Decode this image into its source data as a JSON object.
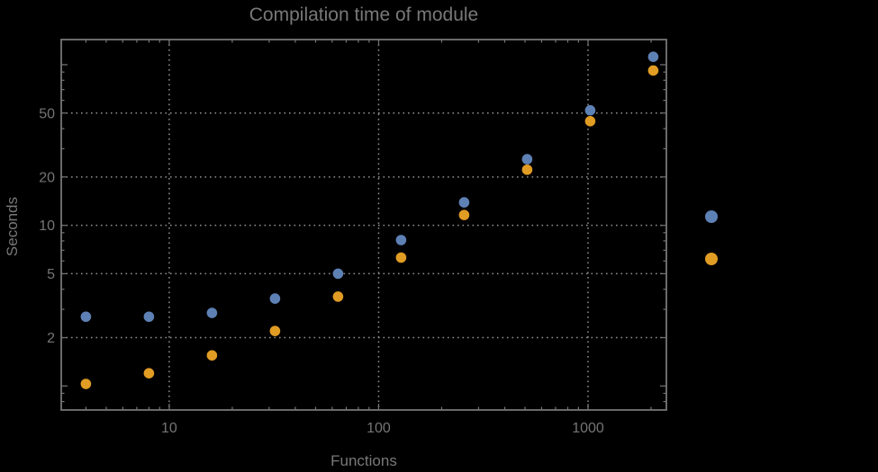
{
  "colors": {
    "background": "#000000",
    "frame": "#767676",
    "text": "#757575",
    "grid": "#8f8f8f",
    "series1": "#5e81b5",
    "series2": "#e19c24"
  },
  "chart_data": {
    "type": "scatter",
    "title": "Compilation time of module",
    "xlabel": "Functions",
    "ylabel": "Seconds",
    "x_scale": "log",
    "y_scale": "log",
    "xlim": [
      3.05,
      2366
    ],
    "ylim": [
      0.709,
      143.4
    ],
    "grid": "dotted",
    "x": [
      4,
      8,
      16,
      32,
      64,
      128,
      256,
      512,
      1024,
      2048
    ],
    "series": [
      {
        "name": "series-1-blue",
        "color": "#5e81b5",
        "values": [
          2.7,
          2.7,
          2.85,
          3.5,
          5.0,
          8.1,
          13.9,
          25.8,
          52,
          112
        ]
      },
      {
        "name": "series-2-orange",
        "color": "#e19c24",
        "values": [
          1.03,
          1.2,
          1.55,
          2.2,
          3.6,
          6.3,
          11.6,
          22.2,
          44.5,
          92
        ]
      }
    ],
    "x_major_ticks": [
      10,
      100,
      1000
    ],
    "x_major_tick_labels": [
      "10",
      "100",
      "1000"
    ],
    "x_minor_ticks": [
      4,
      5,
      6,
      7,
      8,
      9,
      20,
      30,
      40,
      50,
      60,
      70,
      80,
      90,
      200,
      300,
      400,
      500,
      600,
      700,
      800,
      900,
      2000
    ],
    "y_major_ticks": [
      2,
      5,
      10,
      20,
      50
    ],
    "y_major_tick_labels": [
      "2",
      "5",
      "10",
      "20",
      "50"
    ],
    "y_major_ticks_unlabeled": [
      1,
      100
    ],
    "y_minor_ticks": [
      0.8,
      0.9,
      3,
      4,
      6,
      7,
      8,
      9,
      30,
      40,
      60,
      70,
      80,
      90
    ],
    "gridlines_x": [
      10,
      100,
      1000
    ],
    "gridlines_y": [
      2,
      5,
      10,
      20,
      50
    ],
    "legend": {
      "position": "right-outside",
      "entries": [
        {
          "name": "legend-series-1",
          "color": "#5e81b5",
          "label": ""
        },
        {
          "name": "legend-series-2",
          "color": "#e19c24",
          "label": ""
        }
      ]
    }
  }
}
